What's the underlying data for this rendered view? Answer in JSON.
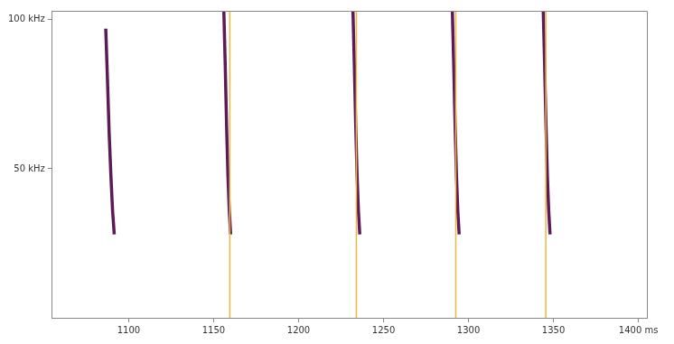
{
  "chart_data": {
    "type": "line",
    "xlim": [
      1055,
      1405
    ],
    "xticks": [
      1100,
      1150,
      1200,
      1250,
      1300,
      1350,
      {
        "value": 1400,
        "label": "1400 ms"
      }
    ],
    "ylim": [
      0,
      103
    ],
    "yticks": [
      {
        "value": 50,
        "label": "50 kHz"
      },
      {
        "value": 100,
        "label": "100 kHz"
      }
    ],
    "grid": false,
    "series": [
      {
        "color": "#f2b640",
        "line_style": "solid",
        "x": [
          1159.5,
          1159.5
        ],
        "values": [
          0,
          103
        ]
      },
      {
        "color": "#f2b640",
        "line_style": "solid",
        "x": [
          1234,
          1234
        ],
        "values": [
          0,
          103
        ]
      },
      {
        "color": "#f2b640",
        "line_style": "solid",
        "x": [
          1292.5,
          1292.5
        ],
        "values": [
          0,
          103
        ]
      },
      {
        "color": "#f2b640",
        "line_style": "solid",
        "x": [
          1345.5,
          1345.5
        ],
        "values": [
          0,
          103
        ]
      },
      {
        "color": "#5c1a58",
        "line_style": "solid",
        "x": [
          1086.5,
          1087.5,
          1088.5,
          1089.5,
          1090.5,
          1091.5
        ],
        "values": [
          97,
          80,
          62,
          48,
          36,
          28
        ]
      },
      {
        "color": "#5c1a58",
        "line_style": "solid",
        "x": [
          1156,
          1156.8,
          1157.6,
          1158.4,
          1159.2,
          1160
        ],
        "values": [
          103,
          85,
          65,
          48,
          36,
          28
        ]
      },
      {
        "color": "#5c1a58",
        "line_style": "solid",
        "x": [
          1232,
          1232.8,
          1233.6,
          1234.4,
          1235.2,
          1236
        ],
        "values": [
          103,
          85,
          65,
          48,
          36,
          28
        ]
      },
      {
        "color": "#5c1a58",
        "line_style": "solid",
        "x": [
          1290.5,
          1291.3,
          1292.1,
          1292.9,
          1293.7,
          1294.5
        ],
        "values": [
          103,
          85,
          65,
          48,
          36,
          28
        ]
      },
      {
        "color": "#5c1a58",
        "line_style": "solid",
        "x": [
          1344,
          1344.8,
          1345.6,
          1346.4,
          1347.2,
          1348
        ],
        "values": [
          103,
          85,
          65,
          48,
          36,
          28
        ]
      }
    ]
  }
}
